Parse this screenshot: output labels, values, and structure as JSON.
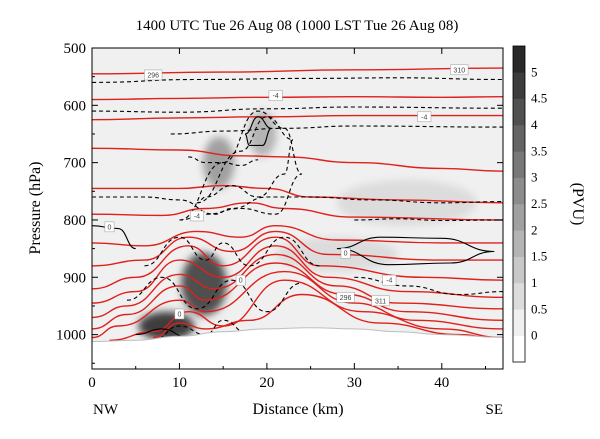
{
  "chart_data": {
    "type": "cross-section",
    "title": "1400 UTC Tue 26 Aug 08 (1000 LST Tue 26 Aug 08)",
    "xlabel": "Distance (km)",
    "ylabel": "Pressure (hPa)",
    "colorbar_label": "(PVU)",
    "xlim": [
      0,
      47
    ],
    "ylim": [
      1060,
      500
    ],
    "x_ticks": [
      0,
      10,
      20,
      30,
      40
    ],
    "y_ticks": [
      500,
      600,
      700,
      800,
      900,
      1000
    ],
    "colorbar_ticks": [
      0,
      0.5,
      1,
      1.5,
      2,
      2.5,
      3,
      3.5,
      4,
      4.5,
      5
    ],
    "colorbar_range": [
      -0.5,
      5.5
    ],
    "direction_left": "NW",
    "direction_right": "SE",
    "shading_colors": [
      "#ffffff",
      "#f0f0f0",
      "#dcdcdc",
      "#c8c8c8",
      "#b4b4b4",
      "#a0a0a0",
      "#8c8c8c",
      "#787878",
      "#646464",
      "#505050",
      "#3c3c3c",
      "#282828"
    ],
    "theta_color": "#e0201c",
    "omega_color": "#000000",
    "contour_labels": [
      "296",
      "310",
      "-4",
      "-4",
      "-4",
      "0",
      "0",
      "0",
      "-4",
      "0",
      "296",
      "311"
    ],
    "pv_blobs": [
      {
        "x": 12.8,
        "p": 912,
        "rx": 2.6,
        "rp": 55,
        "value": 4.2
      },
      {
        "x": 8.5,
        "p": 985,
        "rx": 3.2,
        "rp": 25,
        "value": 4.8
      },
      {
        "x": 14.5,
        "p": 700,
        "rx": 1.8,
        "rp": 45,
        "value": 2.2
      },
      {
        "x": 19.5,
        "p": 650,
        "rx": 1.6,
        "rp": 40,
        "value": 1.6
      },
      {
        "x": 28,
        "p": 860,
        "rx": 7,
        "rp": 30,
        "value": 0.8
      },
      {
        "x": 36,
        "p": 770,
        "rx": 8,
        "rp": 40,
        "value": 0.6
      }
    ],
    "theta_lines": [
      {
        "x": [
          0,
          15,
          30,
          47
        ],
        "p": [
          545,
          542,
          538,
          535
        ]
      },
      {
        "x": [
          0,
          10,
          20,
          30,
          40,
          47
        ],
        "p": [
          590,
          588,
          586,
          585,
          586,
          585
        ]
      },
      {
        "x": [
          0,
          10,
          20,
          30,
          47
        ],
        "p": [
          625,
          622,
          620,
          618,
          618
        ]
      },
      {
        "x": [
          0,
          10,
          17,
          22,
          30,
          40,
          47
        ],
        "p": [
          675,
          678,
          688,
          690,
          700,
          710,
          715
        ]
      },
      {
        "x": [
          0,
          10,
          15,
          20,
          25,
          35,
          47
        ],
        "p": [
          745,
          745,
          740,
          745,
          760,
          765,
          770
        ]
      },
      {
        "x": [
          0,
          8,
          13,
          18,
          22,
          30,
          47
        ],
        "p": [
          790,
          792,
          780,
          770,
          780,
          795,
          800
        ]
      },
      {
        "x": [
          0,
          6,
          12,
          17,
          21,
          28,
          40,
          47
        ],
        "p": [
          840,
          845,
          820,
          830,
          810,
          835,
          840,
          840
        ]
      },
      {
        "x": [
          0,
          6,
          11,
          16,
          21,
          27,
          40,
          47
        ],
        "p": [
          880,
          870,
          830,
          855,
          820,
          860,
          870,
          870
        ]
      },
      {
        "x": [
          0,
          5,
          11,
          15,
          21,
          26,
          38,
          47
        ],
        "p": [
          920,
          900,
          845,
          880,
          830,
          880,
          900,
          905
        ]
      },
      {
        "x": [
          0,
          5,
          10,
          15,
          21,
          27,
          36,
          47
        ],
        "p": [
          945,
          925,
          870,
          900,
          845,
          900,
          925,
          935
        ]
      },
      {
        "x": [
          0,
          4,
          10,
          14,
          21,
          28,
          35,
          47
        ],
        "p": [
          970,
          950,
          895,
          920,
          860,
          915,
          945,
          955
        ]
      },
      {
        "x": [
          0,
          4,
          10,
          13,
          21,
          29,
          36,
          47
        ],
        "p": [
          990,
          965,
          915,
          940,
          875,
          930,
          960,
          975
        ]
      },
      {
        "x": [
          0,
          3,
          10,
          13,
          22,
          30,
          37,
          47
        ],
        "p": [
          1005,
          985,
          940,
          960,
          890,
          945,
          975,
          990
        ]
      },
      {
        "x": [
          2,
          7,
          11,
          15,
          22,
          31,
          40,
          47
        ],
        "p": [
          1010,
          995,
          960,
          985,
          905,
          960,
          990,
          1005
        ]
      },
      {
        "x": [
          7,
          10,
          13,
          18,
          24,
          33,
          42,
          47
        ],
        "p": [
          1005,
          980,
          990,
          975,
          930,
          980,
          1000,
          1010
        ]
      }
    ],
    "omega_lines": [
      {
        "x": [
          0,
          12,
          25,
          35,
          47
        ],
        "p": [
          560,
          555,
          553,
          552,
          555
        ],
        "dashed": true
      },
      {
        "x": [
          0,
          10,
          20,
          30,
          47
        ],
        "p": [
          610,
          612,
          606,
          603,
          605
        ],
        "dashed": true
      },
      {
        "x": [
          9,
          15,
          22,
          30,
          47
        ],
        "p": [
          650,
          645,
          640,
          636,
          638
        ],
        "dashed": true
      },
      {
        "x": [
          12,
          17,
          20,
          23,
          22,
          19,
          16,
          13,
          12
        ],
        "p": [
          770,
          680,
          620,
          660,
          720,
          760,
          740,
          760,
          770
        ],
        "dashed": true
      },
      {
        "x": [
          10,
          15,
          19,
          22,
          24,
          21,
          17,
          13,
          10
        ],
        "p": [
          800,
          700,
          610,
          640,
          720,
          790,
          780,
          790,
          800
        ],
        "dashed": true
      },
      {
        "x": [
          17.5,
          19,
          20.5,
          19.5,
          18,
          17.5
        ],
        "p": [
          650,
          620,
          640,
          670,
          670,
          650
        ],
        "dashed": false
      },
      {
        "x": [
          0,
          6,
          10,
          14,
          16,
          20,
          25,
          32,
          40,
          47
        ],
        "p": [
          760,
          760,
          765,
          790,
          780,
          760,
          760,
          765,
          770,
          768
        ],
        "dashed": true
      },
      {
        "x": [
          6,
          10,
          13,
          15,
          18,
          22,
          26
        ],
        "p": [
          880,
          830,
          870,
          840,
          880,
          830,
          880
        ],
        "dashed": true
      },
      {
        "x": [
          4,
          8,
          12,
          16,
          20,
          24
        ],
        "p": [
          940,
          900,
          955,
          905,
          960,
          910
        ],
        "dashed": true
      },
      {
        "x": [
          28,
          33,
          40,
          46,
          41,
          34,
          28
        ],
        "p": [
          850,
          830,
          832,
          855,
          875,
          878,
          850
        ],
        "dashed": false
      },
      {
        "x": [
          0,
          3,
          5
        ],
        "p": [
          810,
          815,
          850
        ],
        "dashed": false
      },
      {
        "x": [
          7,
          10,
          13,
          15,
          18
        ],
        "p": [
          1010,
          985,
          1000,
          975,
          1000
        ],
        "dashed": true
      },
      {
        "x": [
          30,
          35,
          40,
          47
        ],
        "p": [
          800,
          798,
          801,
          800
        ],
        "dashed": true
      },
      {
        "x": [
          30,
          36,
          42,
          47
        ],
        "p": [
          900,
          915,
          930,
          925
        ],
        "dashed": true
      },
      {
        "x": [
          11,
          13,
          15,
          17,
          19
        ],
        "p": [
          690,
          700,
          700,
          705,
          695
        ],
        "dashed": true
      },
      {
        "x": [
          5,
          8,
          11
        ],
        "p": [
          1000,
          990,
          1005
        ],
        "dashed": false
      }
    ],
    "terrain": {
      "x": [
        0,
        5,
        10,
        15,
        20,
        25,
        30,
        35,
        40,
        47
      ],
      "p": [
        1012,
        1010,
        1003,
        995,
        990,
        988,
        990,
        995,
        1000,
        1005
      ]
    }
  }
}
